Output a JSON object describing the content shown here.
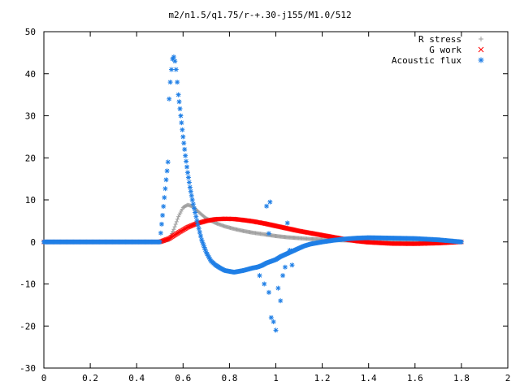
{
  "chart_data": {
    "type": "scatter",
    "title": "m2/n1.5/q1.75/r-+.30-j155/M1.0/512",
    "xlabel": "",
    "ylabel": "",
    "xlim": [
      0,
      2
    ],
    "ylim": [
      -30,
      50
    ],
    "xticks": [
      "0",
      "0.2",
      "0.4",
      "0.6",
      "0.8",
      "1",
      "1.2",
      "1.4",
      "1.6",
      "1.8",
      "2"
    ],
    "yticks": [
      "-30",
      "-20",
      "-10",
      "0",
      "10",
      "20",
      "30",
      "40",
      "50"
    ],
    "grid": false,
    "legend_position": "top-right",
    "series": [
      {
        "name": "R stress",
        "marker": "+",
        "color": "#a0a0a0",
        "x": [
          0.0,
          0.1,
          0.2,
          0.3,
          0.4,
          0.5,
          0.54,
          0.56,
          0.58,
          0.6,
          0.62,
          0.64,
          0.66,
          0.68,
          0.7,
          0.74,
          0.78,
          0.82,
          0.86,
          0.9,
          0.95,
          1.0,
          1.05,
          1.1,
          1.15,
          1.2,
          1.3,
          1.4,
          1.5,
          1.6,
          1.7,
          1.8
        ],
        "y": [
          0,
          0,
          0,
          0,
          0,
          0,
          0.5,
          3.0,
          6.0,
          8.2,
          8.8,
          8.5,
          7.5,
          6.5,
          5.6,
          4.5,
          3.7,
          3.1,
          2.6,
          2.2,
          1.8,
          1.4,
          1.1,
          0.9,
          0.7,
          0.55,
          0.35,
          0.2,
          0.1,
          0.05,
          0.0,
          0.0
        ]
      },
      {
        "name": "G work",
        "marker": "x",
        "color": "#ff0000",
        "x": [
          0.0,
          0.1,
          0.2,
          0.3,
          0.4,
          0.5,
          0.54,
          0.58,
          0.62,
          0.66,
          0.7,
          0.74,
          0.78,
          0.82,
          0.86,
          0.9,
          0.95,
          1.0,
          1.05,
          1.1,
          1.15,
          1.2,
          1.25,
          1.3,
          1.35,
          1.4,
          1.5,
          1.6,
          1.7,
          1.8
        ],
        "y": [
          0,
          0,
          0,
          0,
          0,
          0,
          0.8,
          2.2,
          3.5,
          4.4,
          5.0,
          5.4,
          5.5,
          5.45,
          5.2,
          4.9,
          4.4,
          3.8,
          3.2,
          2.6,
          2.1,
          1.6,
          1.1,
          0.6,
          0.2,
          -0.1,
          -0.4,
          -0.45,
          -0.3,
          0.0
        ]
      },
      {
        "name": "Acoustic flux",
        "marker": "*",
        "color": "#1f7fe6",
        "x": [
          0.0,
          0.1,
          0.2,
          0.3,
          0.4,
          0.5,
          0.535,
          0.54,
          0.545,
          0.55,
          0.555,
          0.56,
          0.565,
          0.57,
          0.575,
          0.58,
          0.59,
          0.6,
          0.61,
          0.62,
          0.63,
          0.64,
          0.66,
          0.68,
          0.7,
          0.72,
          0.74,
          0.76,
          0.78,
          0.8,
          0.82,
          0.84,
          0.86,
          0.88,
          0.9,
          0.92,
          0.94,
          0.96,
          0.98,
          1.0,
          1.02,
          1.04,
          1.06,
          1.08,
          1.1,
          1.12,
          1.15,
          1.2,
          1.25,
          1.3,
          1.35,
          1.4,
          1.5,
          1.6,
          1.7,
          1.8,
          0.93,
          0.95,
          0.97,
          0.975,
          0.98,
          0.99,
          1.0,
          1.01,
          1.02,
          1.03,
          1.04,
          1.05,
          1.06,
          1.07,
          0.96,
          0.97
        ],
        "y": [
          0,
          0,
          0,
          0,
          0,
          0,
          19.0,
          34.0,
          38.0,
          41.0,
          43.5,
          44.0,
          43.0,
          41.0,
          38.0,
          35.0,
          30.0,
          25.0,
          20.5,
          16.5,
          13.0,
          10.0,
          5.0,
          0.5,
          -2.5,
          -4.5,
          -5.5,
          -6.2,
          -6.8,
          -7.0,
          -7.2,
          -7.0,
          -6.8,
          -6.5,
          -6.2,
          -6.0,
          -5.6,
          -5.0,
          -4.6,
          -4.2,
          -3.5,
          -3.0,
          -2.5,
          -2.0,
          -1.5,
          -1.0,
          -0.5,
          0.0,
          0.4,
          0.7,
          0.9,
          1.0,
          0.9,
          0.8,
          0.5,
          0.0,
          -8.0,
          -10.0,
          -12.0,
          9.5,
          -18.0,
          -19.0,
          -21.0,
          -11.0,
          -14.0,
          -8.0,
          -6.0,
          4.5,
          -2.0,
          -5.5,
          8.5,
          2.0
        ]
      }
    ]
  }
}
